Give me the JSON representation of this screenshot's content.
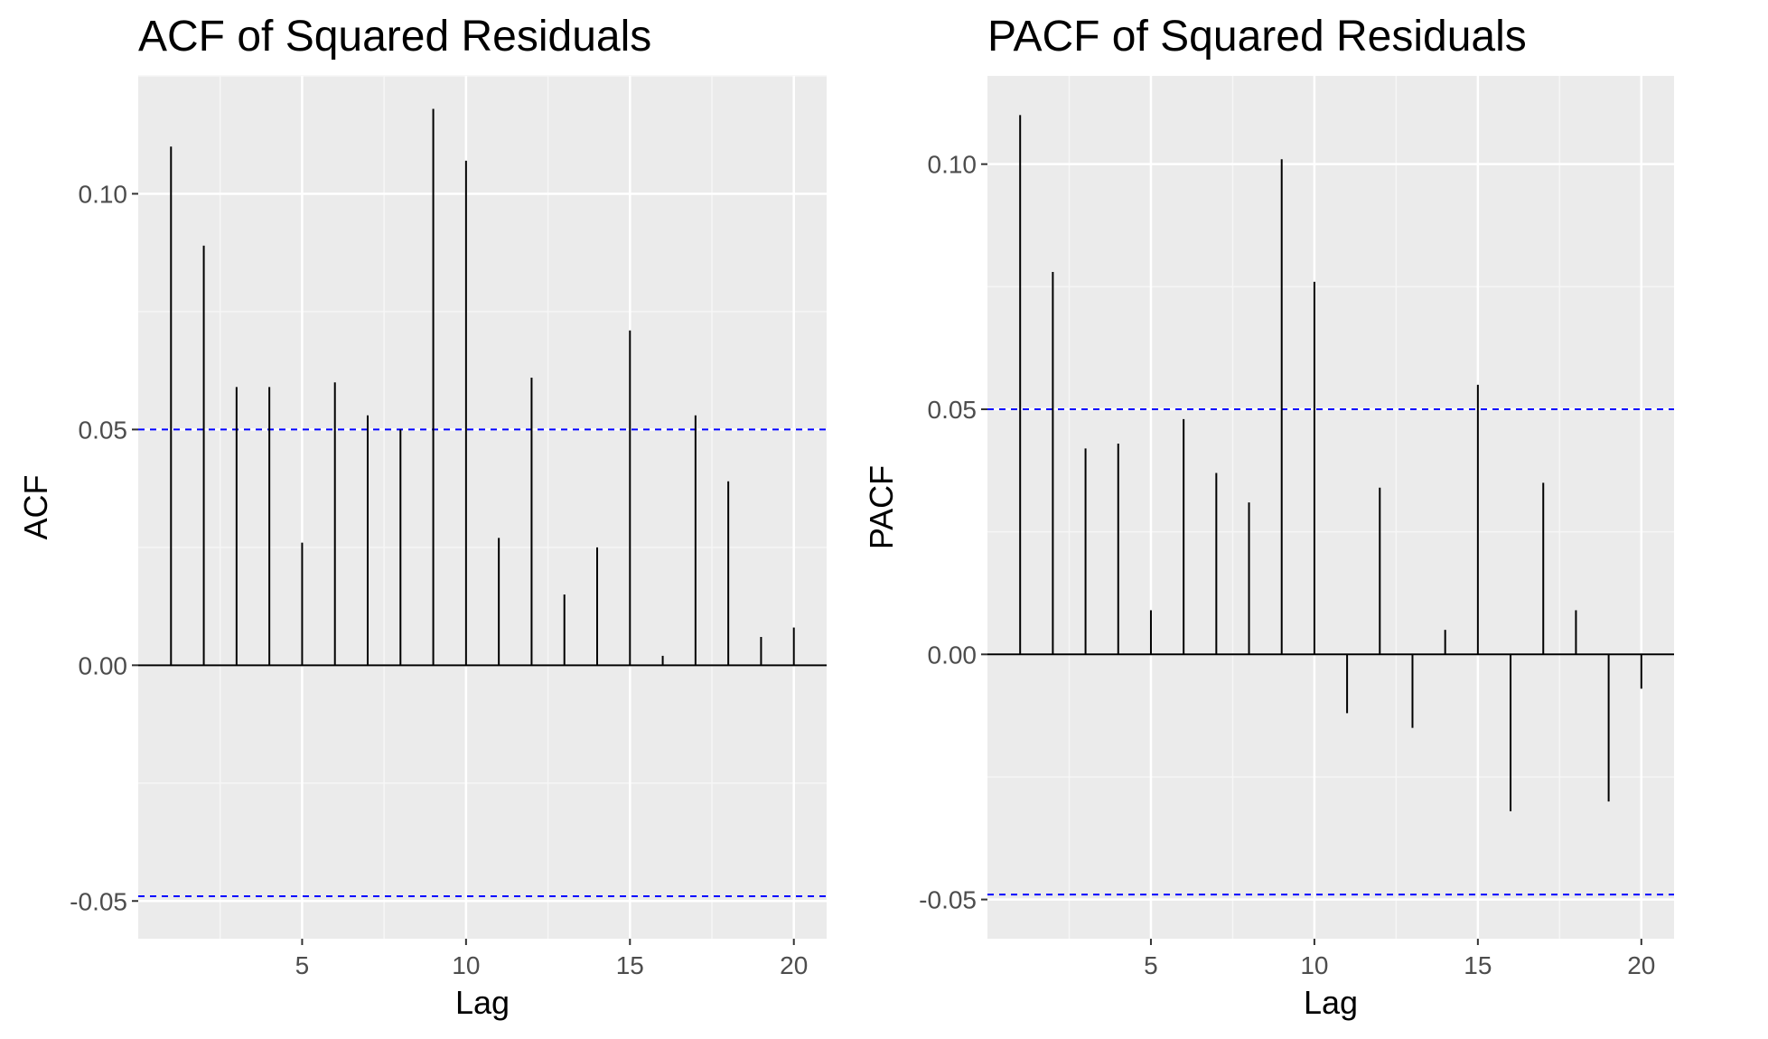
{
  "chart_data": [
    {
      "type": "bar",
      "title": "ACF of Squared Residuals",
      "xlabel": "Lag",
      "ylabel": "ACF",
      "xlim": [
        0,
        21
      ],
      "ylim": [
        -0.058,
        0.125
      ],
      "x_ticks": [
        5,
        10,
        15,
        20
      ],
      "y_ticks": [
        -0.05,
        0.0,
        0.05,
        0.1
      ],
      "y_tick_labels": [
        "-0.05",
        "0.00",
        "0.05",
        "0.10"
      ],
      "confidence_bounds": [
        0.05,
        -0.049
      ],
      "confidence_color": "#0000ff",
      "grid": true,
      "series": [
        {
          "x": [
            1,
            2,
            3,
            4,
            5,
            6,
            7,
            8,
            9,
            10,
            11,
            12,
            13,
            14,
            15,
            16,
            17,
            18,
            19,
            20
          ],
          "values": [
            0.11,
            0.089,
            0.059,
            0.059,
            0.026,
            0.06,
            0.053,
            0.05,
            0.118,
            0.107,
            0.027,
            0.061,
            0.015,
            0.025,
            0.071,
            0.002,
            0.053,
            0.039,
            0.006,
            0.008
          ]
        }
      ]
    },
    {
      "type": "bar",
      "title": "PACF of Squared Residuals",
      "xlabel": "Lag",
      "ylabel": "PACF",
      "xlim": [
        0,
        21
      ],
      "ylim": [
        -0.058,
        0.118
      ],
      "x_ticks": [
        5,
        10,
        15,
        20
      ],
      "y_ticks": [
        -0.05,
        0.0,
        0.05,
        0.1
      ],
      "y_tick_labels": [
        "-0.05",
        "0.00",
        "0.05",
        "0.10"
      ],
      "confidence_bounds": [
        0.05,
        -0.049
      ],
      "confidence_color": "#0000ff",
      "grid": true,
      "series": [
        {
          "x": [
            1,
            2,
            3,
            4,
            5,
            6,
            7,
            8,
            9,
            10,
            11,
            12,
            13,
            14,
            15,
            16,
            17,
            18,
            19,
            20
          ],
          "values": [
            0.11,
            0.078,
            0.042,
            0.043,
            0.009,
            0.048,
            0.037,
            0.031,
            0.101,
            0.076,
            -0.012,
            0.034,
            -0.015,
            0.005,
            0.055,
            -0.032,
            0.035,
            0.009,
            -0.03,
            -0.007
          ]
        }
      ]
    }
  ]
}
